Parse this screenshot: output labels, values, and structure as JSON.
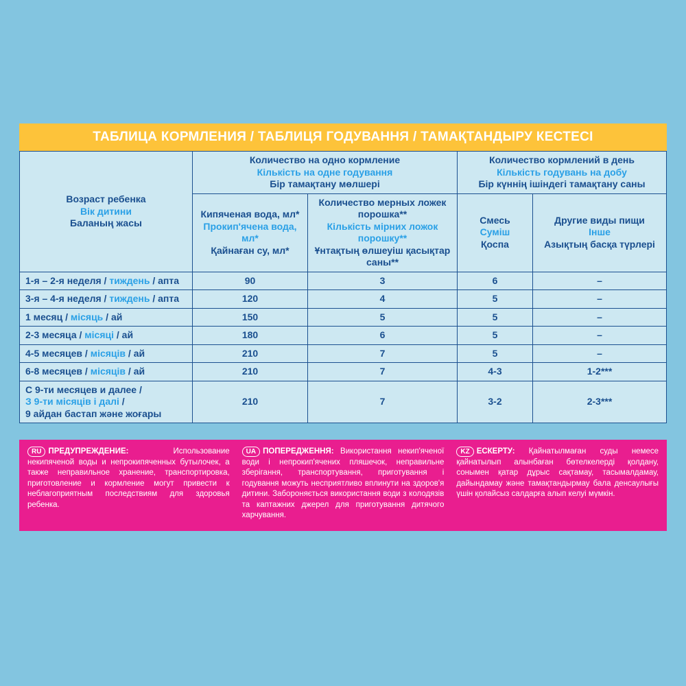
{
  "title": "ТАБЛИЦА КОРМЛЕНИЯ / ТАБЛИЦЯ ГОДУВАННЯ / ТАМАҚТАНДЫРУ КЕСТЕСІ",
  "colors": {
    "page_bg": "#83c5e0",
    "title_bg": "#fdc33a",
    "title_text": "#ffffff",
    "table_bg": "#cde8f2",
    "table_border": "#1a4f8f",
    "text_ru_kz": "#1a4f8f",
    "text_ua": "#2aa0e6",
    "warn_bg": "#e91e8f",
    "warn_text": "#ffffff"
  },
  "headers": {
    "age": {
      "ru": "Возраст ребенка",
      "ua": "Вік дитини",
      "kz": "Баланың жасы"
    },
    "per_feeding": {
      "ru": "Количество на одно кормление",
      "ua": "Кількість на одне годування",
      "kz": "Бір тамақтану мөлшері"
    },
    "per_day": {
      "ru": "Количество кормлений в день",
      "ua": "Кількість годувань на добу",
      "kz": "Бір күннің ішіндегі тамақтану саны"
    },
    "water": {
      "ru": "Кипяченая вода, мл*",
      "ua": "Прокип'ячена вода, мл*",
      "kz": "Қайнаған су, мл*"
    },
    "scoops": {
      "ru": "Количество мерных ложек порошка**",
      "ua": "Кількість мірних ложок порошку**",
      "kz": "Ұнтақтың өлшеуіш қасықтар саны**"
    },
    "mix": {
      "ru": "Смесь",
      "ua": "Суміш",
      "kz": "Қоспа"
    },
    "other": {
      "ru": "Другие виды пищи",
      "ua": "Інше",
      "kz": "Азықтың басқа түрлері"
    }
  },
  "rows": [
    {
      "age_ru": "1-я – 2-я неделя / ",
      "age_ua": "тиждень",
      "age_kz": " / апта",
      "water": "90",
      "scoops": "3",
      "mix": "6",
      "other": "–"
    },
    {
      "age_ru": "3-я – 4-я неделя / ",
      "age_ua": "тиждень",
      "age_kz": " / апта",
      "water": "120",
      "scoops": "4",
      "mix": "5",
      "other": "–"
    },
    {
      "age_ru": "1 месяц / ",
      "age_ua": "місяць",
      "age_kz": " / ай",
      "water": "150",
      "scoops": "5",
      "mix": "5",
      "other": "–"
    },
    {
      "age_ru": "2-3 месяца / ",
      "age_ua": "місяці",
      "age_kz": " / ай",
      "water": "180",
      "scoops": "6",
      "mix": "5",
      "other": "–"
    },
    {
      "age_ru": "4-5 месяцев / ",
      "age_ua": "місяців",
      "age_kz": " / ай",
      "water": "210",
      "scoops": "7",
      "mix": "5",
      "other": "–"
    },
    {
      "age_ru": "6-8 месяцев / ",
      "age_ua": "місяців",
      "age_kz": " / ай",
      "water": "210",
      "scoops": "7",
      "mix": "4-3",
      "other": "1-2***"
    },
    {
      "age_ru": "С 9-ти месяцев и далее /",
      "age_ua": "З 9-ти місяців і далі",
      "age_kz": "9 айдан бастап және жоғары",
      "water": "210",
      "scoops": "7",
      "mix": "3-2",
      "other": "2-3***",
      "multiline": true
    }
  ],
  "warnings": {
    "ru": {
      "badge": "RU",
      "lead": "ПРЕДУПРЕЖДЕНИЕ:",
      "text": " Использование некипяченой воды и непрокипяченных бутылочек, а также неправильное хранение, транспортировка, приготовление и кормление могут привести к неблагоприятным последствиям для здоровья ребенка."
    },
    "ua": {
      "badge": "UA",
      "lead": "ПОПЕРЕДЖЕННЯ:",
      "text": " Використання некип'яченої води і непрокип'ячених пляшечок, неправильне зберігання, транспортування, приготування і годування можуть несприятливо вплинути на здоров'я дитини. Забороняється використання води з колодязів та каптажних джерел для приготування дитячого харчування."
    },
    "kz": {
      "badge": "KZ",
      "lead": "ЕСКЕРТУ:",
      "text": " Қайнатылмаған суды немесе қайнатылып алынбаған бөтелкелерді қолдану, сонымен қатар дұрыс сақтамау, тасымалдамау, дайындамау және тамақтандырмау бала денсаулығы үшін қолайсыз салдарға алып келуі мүмкін."
    }
  }
}
